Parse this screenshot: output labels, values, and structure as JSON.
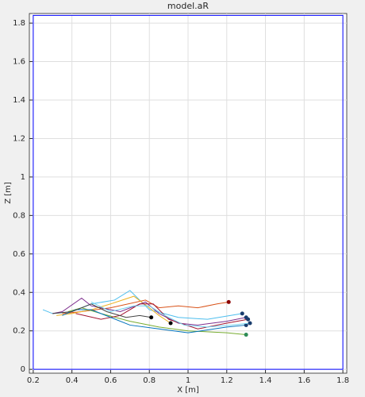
{
  "chart_data": {
    "type": "line",
    "title": "model.aR",
    "x_label": "X [m]",
    "y_label": "Z [m]",
    "xlim": [
      0.18,
      1.82
    ],
    "ylim": [
      -0.02,
      1.85
    ],
    "xticks": [
      0.2,
      0.4,
      0.6,
      0.8,
      1,
      1.2,
      1.4,
      1.6,
      1.8
    ],
    "yticks": [
      0,
      0.2,
      0.4,
      0.6,
      0.8,
      1,
      1.2,
      1.4,
      1.6,
      1.8
    ],
    "grid": true,
    "series": [
      {
        "color": "#0000ff",
        "x": [
          0.2,
          1.8,
          1.8,
          0.2,
          0.2
        ],
        "y": [
          0,
          0,
          1.84,
          1.84,
          0
        ]
      },
      {
        "color": "#4dbeee",
        "marker_color": "#1a3d6e",
        "x": [
          1.28,
          1.1,
          0.95,
          0.8,
          0.7,
          0.62,
          0.5,
          0.4,
          0.3,
          0.25
        ],
        "y": [
          0.29,
          0.26,
          0.27,
          0.31,
          0.41,
          0.36,
          0.34,
          0.3,
          0.29,
          0.31
        ]
      },
      {
        "color": "#d95319",
        "marker_color": "#8b0000",
        "x": [
          1.21,
          1.15,
          1.05,
          0.95,
          0.85,
          0.78,
          0.6,
          0.45,
          0.35
        ],
        "y": [
          0.35,
          0.34,
          0.32,
          0.33,
          0.32,
          0.36,
          0.32,
          0.3,
          0.29
        ]
      },
      {
        "color": "#edb120",
        "marker_color": "#000000",
        "x": [
          0.91,
          0.85,
          0.8,
          0.72,
          0.6,
          0.5,
          0.4,
          0.32
        ],
        "y": [
          0.24,
          0.28,
          0.32,
          0.38,
          0.34,
          0.31,
          0.29,
          0.28
        ]
      },
      {
        "color": "#7e2f8e",
        "marker_color": "#1a3d6e",
        "x": [
          1.3,
          1.2,
          1.05,
          0.95,
          0.85,
          0.78,
          0.65,
          0.5,
          0.45,
          0.35,
          0.3
        ],
        "y": [
          0.27,
          0.25,
          0.23,
          0.24,
          0.29,
          0.35,
          0.3,
          0.33,
          0.37,
          0.3,
          0.29
        ]
      },
      {
        "color": "#77ac30",
        "marker_color": "#2e8b57",
        "x": [
          1.3,
          1.2,
          1.0,
          0.85,
          0.7,
          0.55,
          0.45,
          0.38
        ],
        "y": [
          0.18,
          0.19,
          0.2,
          0.22,
          0.25,
          0.29,
          0.32,
          0.3
        ]
      },
      {
        "color": "#a2142f",
        "marker_color": "#1a3d6e",
        "x": [
          1.31,
          1.2,
          1.05,
          0.9,
          0.82,
          0.75,
          0.65,
          0.55,
          0.42
        ],
        "y": [
          0.26,
          0.24,
          0.21,
          0.26,
          0.34,
          0.34,
          0.28,
          0.26,
          0.29
        ]
      },
      {
        "color": "#0072bd",
        "marker_color": "#1a3d6e",
        "x": [
          1.3,
          1.2,
          1.0,
          0.85,
          0.7,
          0.6,
          0.5,
          0.42,
          0.35
        ],
        "y": [
          0.23,
          0.22,
          0.19,
          0.21,
          0.23,
          0.27,
          0.31,
          0.31,
          0.28
        ]
      },
      {
        "color": "#6fd3f0",
        "marker_color": "#1a3d6e",
        "x": [
          1.32,
          1.22,
          1.1,
          0.98,
          0.88,
          0.8,
          0.72,
          0.6,
          0.5
        ],
        "y": [
          0.24,
          0.23,
          0.22,
          0.23,
          0.28,
          0.33,
          0.33,
          0.3,
          0.35
        ]
      },
      {
        "color": "#444444",
        "marker_color": "#000000",
        "x": [
          0.81,
          0.75,
          0.68,
          0.58,
          0.5,
          0.4,
          0.3
        ],
        "y": [
          0.27,
          0.28,
          0.27,
          0.3,
          0.34,
          0.3,
          0.29
        ]
      }
    ]
  }
}
